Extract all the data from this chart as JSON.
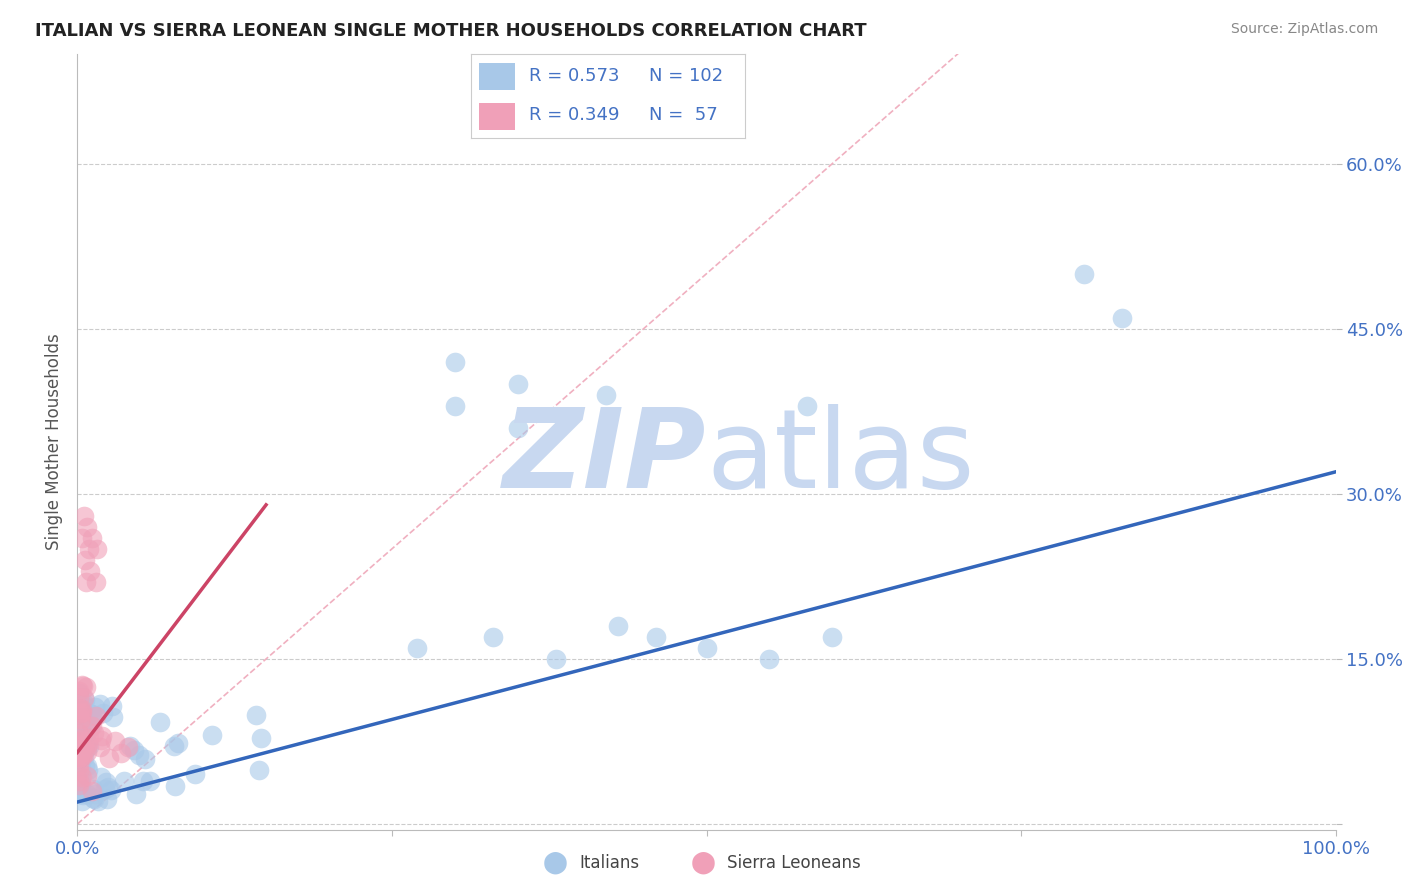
{
  "title": "ITALIAN VS SIERRA LEONEAN SINGLE MOTHER HOUSEHOLDS CORRELATION CHART",
  "source": "Source: ZipAtlas.com",
  "ylabel": "Single Mother Households",
  "xlim": [
    0,
    1.0
  ],
  "ylim": [
    -0.005,
    0.7
  ],
  "yticks": [
    0.0,
    0.15,
    0.3,
    0.45,
    0.6
  ],
  "ytick_labels": [
    "",
    "15.0%",
    "30.0%",
    "45.0%",
    "60.0%"
  ],
  "xtick_labels": [
    "0.0%",
    "",
    "",
    "",
    "100.0%"
  ],
  "xticks": [
    0.0,
    0.25,
    0.5,
    0.75,
    1.0
  ],
  "italian_R": 0.573,
  "italian_N": 102,
  "sierraleonean_R": 0.349,
  "sierraleonean_N": 57,
  "italian_color": "#a8c8e8",
  "sierraleonean_color": "#f0a0b8",
  "italian_line_color": "#3366bb",
  "sierraleonean_line_color": "#cc4466",
  "diagonal_color": "#f0b0c0",
  "legend_italian_label": "Italians",
  "legend_sierraleonean_label": "Sierra Leoneans",
  "watermark_zip": "ZIP",
  "watermark_atlas": "atlas",
  "watermark_color": "#c8d8f0",
  "background_color": "#ffffff",
  "grid_color": "#cccccc",
  "title_color": "#222222",
  "tick_color": "#4472c4",
  "source_color": "#888888",
  "legend_text_color": "#4472c4",
  "italian_intercept": 0.02,
  "italian_slope": 0.3,
  "sierraleonean_intercept": 0.065,
  "sierraleonean_slope": 1.5
}
